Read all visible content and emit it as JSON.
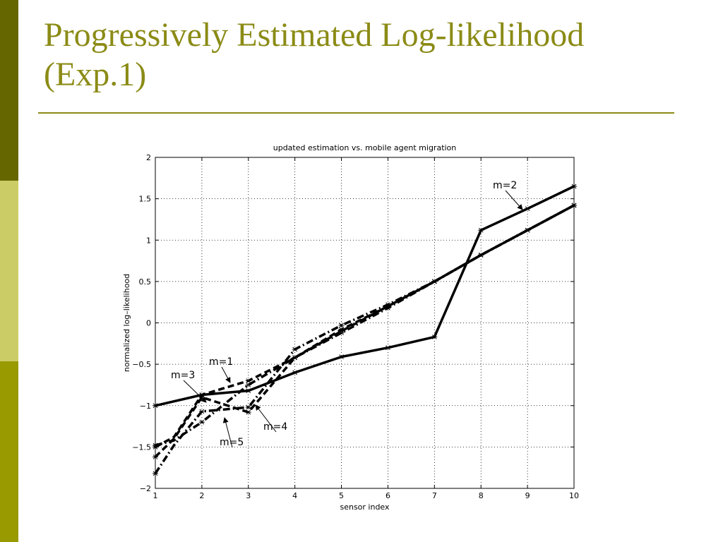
{
  "slide": {
    "title_line1": "Progressively Estimated Log-likelihood",
    "title_line2": "(Exp.1)"
  },
  "colors": {
    "title": "#8b8b16",
    "rule": "#8b8b16",
    "bar_top": "#666600",
    "bar_mid": "#cccc66",
    "bar_bottom": "#999900"
  },
  "chart_data": {
    "type": "line",
    "title": "updated estimation vs. mobile agent migration",
    "xlabel": "sensor index",
    "ylabel": "normalized log–likelihood",
    "xlim": [
      1,
      10
    ],
    "ylim": [
      -2,
      2
    ],
    "xticks": [
      1,
      2,
      3,
      4,
      5,
      6,
      7,
      8,
      9,
      10
    ],
    "yticks": [
      -2,
      -1.5,
      -1,
      -0.5,
      0,
      0.5,
      1,
      1.5,
      2
    ],
    "ytick_labels": [
      "−2",
      "−1.5",
      "−1",
      "−0.5",
      "0",
      "0.5",
      "1",
      "1.5",
      "2"
    ],
    "grid": true,
    "series": [
      {
        "name": "m=1",
        "style": "dash",
        "x": [
          1,
          1.4,
          2,
          3,
          4,
          5,
          6,
          7,
          8,
          9,
          10
        ],
        "y": [
          -1.5,
          -1.38,
          -0.87,
          -0.7,
          -0.42,
          -0.1,
          0.2,
          0.5,
          0.82,
          1.12,
          1.42
        ]
      },
      {
        "name": "m=2",
        "style": "solid",
        "x": [
          1,
          2,
          3,
          4,
          5,
          6,
          7,
          8,
          9,
          10
        ],
        "y": [
          -1.0,
          -0.87,
          -0.82,
          -0.6,
          -0.41,
          -0.3,
          -0.17,
          1.12,
          1.38,
          1.65
        ]
      },
      {
        "name": "m=3",
        "style": "dash",
        "x": [
          1,
          1.4,
          2,
          3,
          4,
          5,
          6,
          7,
          8,
          9,
          10
        ],
        "y": [
          -1.62,
          -1.4,
          -0.9,
          -1.08,
          -0.42,
          -0.08,
          0.2,
          0.5,
          0.82,
          1.12,
          1.42
        ]
      },
      {
        "name": "m=4",
        "style": "dashdot",
        "x": [
          1,
          1.4,
          2,
          3,
          4,
          5,
          6,
          7,
          8,
          9,
          10
        ],
        "y": [
          -1.82,
          -1.48,
          -1.07,
          -1.02,
          -0.32,
          -0.03,
          0.22,
          0.5,
          0.82,
          1.12,
          1.42
        ]
      },
      {
        "name": "m=5",
        "style": "dashdot",
        "x": [
          1,
          1.4,
          2,
          3,
          4,
          5,
          6,
          7,
          8,
          9,
          10
        ],
        "y": [
          -1.48,
          -1.42,
          -1.2,
          -0.75,
          -0.42,
          -0.12,
          0.18,
          0.5,
          0.82,
          1.12,
          1.42
        ]
      }
    ],
    "annotations": [
      {
        "text": "m=2",
        "target_series": "m=2"
      },
      {
        "text": "m=1",
        "target_series": "m=1"
      },
      {
        "text": "m=3",
        "target_series": "m=3"
      },
      {
        "text": "m=4",
        "target_series": "m=4"
      },
      {
        "text": "m=5",
        "target_series": "m=5"
      }
    ]
  }
}
